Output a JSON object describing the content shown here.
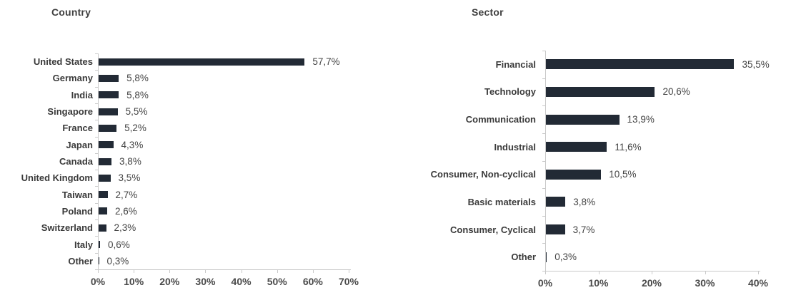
{
  "colors": {
    "bar": "#222a35",
    "axis_line": "#c9c9c9",
    "title_text": "#3f3f3f",
    "category_text": "#3a3a3a",
    "value_text": "#444444",
    "axis_tick_text": "#4a4a4a",
    "background": "#ffffff"
  },
  "chart_data": [
    {
      "type": "bar",
      "orientation": "horizontal",
      "title": "Country",
      "categories": [
        "United States",
        "Germany",
        "India",
        "Singapore",
        "France",
        "Japan",
        "Canada",
        "United Kingdom",
        "Taiwan",
        "Poland",
        "Switzerland",
        "Italy",
        "Other"
      ],
      "values": [
        57.7,
        5.8,
        5.8,
        5.5,
        5.2,
        4.3,
        3.8,
        3.5,
        2.7,
        2.6,
        2.3,
        0.6,
        0.3
      ],
      "value_labels": [
        "57,7%",
        "5,8%",
        "5,8%",
        "5,5%",
        "5,2%",
        "4,3%",
        "3,8%",
        "3,5%",
        "2,7%",
        "2,6%",
        "2,3%",
        "0,6%",
        "0,3%"
      ],
      "x_tick_labels": [
        "0%",
        "10%",
        "20%",
        "30%",
        "40%",
        "50%",
        "60%",
        "70%"
      ],
      "xlim": [
        0,
        70
      ],
      "xlabel": "",
      "ylabel": "",
      "bar_color": "#222a35",
      "grid": "off",
      "legend": "none"
    },
    {
      "type": "bar",
      "orientation": "horizontal",
      "title": "Sector",
      "categories": [
        "Financial",
        "Technology",
        "Communication",
        "Industrial",
        "Consumer, Non-cyclical",
        "Basic materials",
        "Consumer, Cyclical",
        "Other"
      ],
      "values": [
        35.5,
        20.6,
        13.9,
        11.6,
        10.5,
        3.8,
        3.7,
        0.3
      ],
      "value_labels": [
        "35,5%",
        "20,6%",
        "13,9%",
        "11,6%",
        "10,5%",
        "3,8%",
        "3,7%",
        "0,3%"
      ],
      "x_tick_labels": [
        "0%",
        "10%",
        "20%",
        "30%",
        "40%"
      ],
      "xlim": [
        0,
        40
      ],
      "xlabel": "",
      "ylabel": "",
      "bar_color": "#222a35",
      "grid": "off",
      "legend": "none"
    }
  ]
}
